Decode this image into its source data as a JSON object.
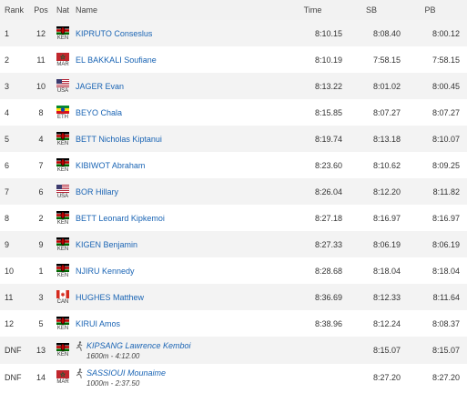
{
  "headers": {
    "rank": "Rank",
    "pos": "Pos",
    "nat": "Nat",
    "name": "Name",
    "time": "Time",
    "sb": "SB",
    "pb": "PB"
  },
  "colors": {
    "link": "#1a64b4",
    "row_alt": "#f3f3f3"
  },
  "rows": [
    {
      "rank": "1",
      "pos": "12",
      "nat": "KEN",
      "name": "KIPRUTO Conseslus",
      "time": "8:10.15",
      "sb": "8:08.40",
      "pb": "8:00.12"
    },
    {
      "rank": "2",
      "pos": "11",
      "nat": "MAR",
      "name": "EL BAKKALI Soufiane",
      "time": "8:10.19",
      "sb": "7:58.15",
      "pb": "7:58.15"
    },
    {
      "rank": "3",
      "pos": "10",
      "nat": "USA",
      "name": "JAGER Evan",
      "time": "8:13.22",
      "sb": "8:01.02",
      "pb": "8:00.45"
    },
    {
      "rank": "4",
      "pos": "8",
      "nat": "ETH",
      "name": "BEYO Chala",
      "time": "8:15.85",
      "sb": "8:07.27",
      "pb": "8:07.27"
    },
    {
      "rank": "5",
      "pos": "4",
      "nat": "KEN",
      "name": "BETT Nicholas Kiptanui",
      "time": "8:19.74",
      "sb": "8:13.18",
      "pb": "8:10.07"
    },
    {
      "rank": "6",
      "pos": "7",
      "nat": "KEN",
      "name": "KIBIWOT Abraham",
      "time": "8:23.60",
      "sb": "8:10.62",
      "pb": "8:09.25"
    },
    {
      "rank": "7",
      "pos": "6",
      "nat": "USA",
      "name": "BOR Hillary",
      "time": "8:26.04",
      "sb": "8:12.20",
      "pb": "8:11.82"
    },
    {
      "rank": "8",
      "pos": "2",
      "nat": "KEN",
      "name": "BETT Leonard Kipkemoi",
      "time": "8:27.18",
      "sb": "8:16.97",
      "pb": "8:16.97"
    },
    {
      "rank": "9",
      "pos": "9",
      "nat": "KEN",
      "name": "KIGEN Benjamin",
      "time": "8:27.33",
      "sb": "8:06.19",
      "pb": "8:06.19"
    },
    {
      "rank": "10",
      "pos": "1",
      "nat": "KEN",
      "name": "NJIRU Kennedy",
      "time": "8:28.68",
      "sb": "8:18.04",
      "pb": "8:18.04"
    },
    {
      "rank": "11",
      "pos": "3",
      "nat": "CAN",
      "name": "HUGHES Matthew",
      "time": "8:36.69",
      "sb": "8:12.33",
      "pb": "8:11.64"
    },
    {
      "rank": "12",
      "pos": "5",
      "nat": "KEN",
      "name": "KIRUI Amos",
      "time": "8:38.96",
      "sb": "8:12.24",
      "pb": "8:08.37"
    },
    {
      "rank": "DNF",
      "pos": "13",
      "nat": "KEN",
      "name": "KIPSANG Lawrence Kemboi",
      "note": "1600m - 4:12.00",
      "time": "",
      "sb": "8:15.07",
      "pb": "8:15.07"
    },
    {
      "rank": "DNF",
      "pos": "14",
      "nat": "MAR",
      "name": "SASSIOUI Mounaime",
      "note": "1000m - 2:37.50",
      "time": "",
      "sb": "8:27.20",
      "pb": "8:27.20"
    }
  ]
}
